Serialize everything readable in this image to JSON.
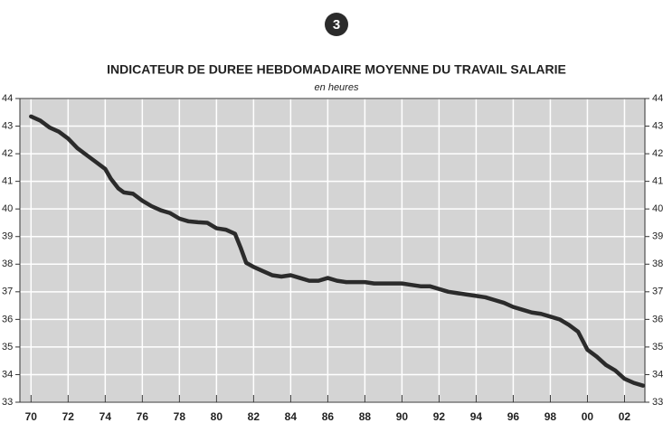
{
  "chart_data": {
    "type": "line",
    "annotation": "3",
    "title": "INDICATEUR DE DUREE HEBDOMADAIRE MOYENNE DU TRAVAIL SALARIE",
    "subtitle": "en heures",
    "x": [
      1970,
      1970.5,
      1971,
      1971.5,
      1972,
      1972.5,
      1973,
      1973.5,
      1974,
      1974.3,
      1974.7,
      1975,
      1975.5,
      1976,
      1976.5,
      1977,
      1977.5,
      1978,
      1978.5,
      1979,
      1979.5,
      1980,
      1980.5,
      1981,
      1981.3,
      1981.6,
      1982,
      1982.5,
      1983,
      1983.5,
      1984,
      1984.5,
      1985,
      1985.5,
      1986,
      1986.5,
      1987,
      1987.5,
      1988,
      1988.5,
      1989,
      1989.5,
      1990,
      1990.5,
      1991,
      1991.5,
      1992,
      1992.5,
      1993,
      1993.5,
      1994,
      1994.5,
      1995,
      1995.5,
      1996,
      1996.5,
      1997,
      1997.5,
      1998,
      1998.5,
      1999,
      1999.5,
      2000,
      2000.5,
      2001,
      2001.5,
      2002,
      2002.5,
      2003
    ],
    "series": [
      {
        "name": "Durée hebdomadaire",
        "color": "#2b2b2b",
        "values": [
          43.35,
          43.2,
          42.95,
          42.8,
          42.55,
          42.2,
          41.95,
          41.7,
          41.45,
          41.1,
          40.75,
          40.6,
          40.55,
          40.3,
          40.1,
          39.95,
          39.85,
          39.65,
          39.55,
          39.52,
          39.5,
          39.3,
          39.25,
          39.1,
          38.6,
          38.05,
          37.9,
          37.75,
          37.6,
          37.55,
          37.6,
          37.5,
          37.4,
          37.4,
          37.5,
          37.4,
          37.35,
          37.35,
          37.35,
          37.3,
          37.3,
          37.3,
          37.3,
          37.25,
          37.2,
          37.2,
          37.1,
          37.0,
          36.95,
          36.9,
          36.85,
          36.8,
          36.7,
          36.6,
          36.45,
          36.35,
          36.25,
          36.2,
          36.1,
          36.0,
          35.8,
          35.55,
          34.9,
          34.65,
          34.35,
          34.15,
          33.85,
          33.7,
          33.6
        ]
      }
    ],
    "xlim": [
      1969.4,
      2003.1
    ],
    "xticks": [
      {
        "value": 1970,
        "label": "70"
      },
      {
        "value": 1972,
        "label": "72"
      },
      {
        "value": 1974,
        "label": "74"
      },
      {
        "value": 1976,
        "label": "76"
      },
      {
        "value": 1978,
        "label": "78"
      },
      {
        "value": 1980,
        "label": "80"
      },
      {
        "value": 1982,
        "label": "82"
      },
      {
        "value": 1984,
        "label": "84"
      },
      {
        "value": 1986,
        "label": "86"
      },
      {
        "value": 1988,
        "label": "88"
      },
      {
        "value": 1990,
        "label": "90"
      },
      {
        "value": 1992,
        "label": "92"
      },
      {
        "value": 1994,
        "label": "94"
      },
      {
        "value": 1996,
        "label": "96"
      },
      {
        "value": 1998,
        "label": "98"
      },
      {
        "value": 2000,
        "label": "00"
      },
      {
        "value": 2002,
        "label": "02"
      }
    ],
    "ylim": [
      33,
      44
    ],
    "yticks": [
      33,
      34,
      35,
      36,
      37,
      38,
      39,
      40,
      41,
      42,
      43,
      44
    ],
    "grid": true,
    "background": "#d4d4d4",
    "grid_color": "#ffffff"
  }
}
